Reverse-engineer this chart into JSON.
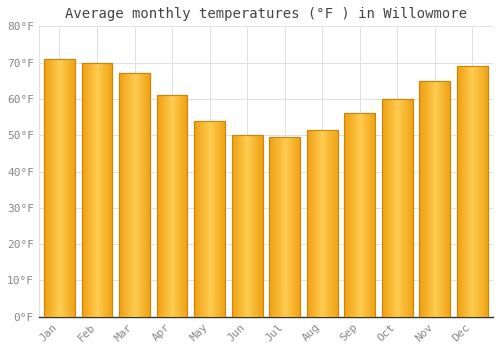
{
  "title": "Average monthly temperatures (°F ) in Willowmore",
  "months": [
    "Jan",
    "Feb",
    "Mar",
    "Apr",
    "May",
    "Jun",
    "Jul",
    "Aug",
    "Sep",
    "Oct",
    "Nov",
    "Dec"
  ],
  "values": [
    71,
    70,
    67,
    61,
    54,
    50,
    49.5,
    51.5,
    56,
    60,
    65,
    69
  ],
  "bar_color_main": "#FBBA2A",
  "bar_color_edge": "#C8870A",
  "background_color": "#ffffff",
  "ylim": [
    0,
    80
  ],
  "yticks": [
    0,
    10,
    20,
    30,
    40,
    50,
    60,
    70,
    80
  ],
  "ytick_labels": [
    "0°F",
    "10°F",
    "20°F",
    "30°F",
    "40°F",
    "50°F",
    "60°F",
    "70°F",
    "80°F"
  ],
  "grid_color": "#e0e0e0",
  "title_fontsize": 10,
  "tick_fontsize": 8,
  "font_family": "monospace",
  "tick_color": "#888888",
  "title_color": "#444444"
}
